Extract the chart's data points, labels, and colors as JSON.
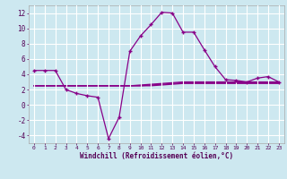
{
  "xlabel": "Windchill (Refroidissement éolien,°C)",
  "bg_color": "#cde8f0",
  "grid_color": "#ffffff",
  "line_color": "#880088",
  "x_hours": [
    0,
    1,
    2,
    3,
    4,
    5,
    6,
    7,
    8,
    9,
    10,
    11,
    12,
    13,
    14,
    15,
    16,
    17,
    18,
    19,
    20,
    21,
    22,
    23
  ],
  "y_main": [
    4.5,
    4.5,
    4.5,
    2.0,
    1.5,
    1.2,
    1.0,
    -4.4,
    -1.6,
    7.0,
    9.0,
    10.5,
    12.1,
    12.0,
    9.5,
    9.5,
    7.2,
    5.0,
    3.3,
    3.2,
    3.0,
    3.5,
    3.7,
    3.0
  ],
  "y_flat1": [
    2.5,
    2.5,
    2.5,
    2.5,
    2.5,
    2.5,
    2.5,
    2.5,
    2.5,
    2.5,
    2.6,
    2.7,
    2.8,
    2.9,
    3.0,
    3.0,
    3.0,
    3.0,
    3.0,
    3.0,
    3.0,
    3.0,
    3.0,
    3.0
  ],
  "y_flat2": [
    2.5,
    2.5,
    2.5,
    2.5,
    2.5,
    2.5,
    2.5,
    2.5,
    2.5,
    2.5,
    2.5,
    2.6,
    2.7,
    2.8,
    2.9,
    2.9,
    2.9,
    2.9,
    2.9,
    2.9,
    2.9,
    2.9,
    2.9,
    2.9
  ],
  "y_flat3": [
    2.5,
    2.5,
    2.5,
    2.5,
    2.5,
    2.5,
    2.5,
    2.5,
    2.5,
    2.5,
    2.5,
    2.5,
    2.6,
    2.7,
    2.8,
    2.8,
    2.8,
    2.8,
    2.8,
    2.8,
    2.8,
    2.8,
    2.8,
    2.8
  ],
  "ylim": [
    -5,
    13
  ],
  "yticks": [
    -4,
    -2,
    0,
    2,
    4,
    6,
    8,
    10,
    12
  ],
  "xtick_labels": [
    "0",
    "1",
    "2",
    "3",
    "4",
    "5",
    "6",
    "7",
    "8",
    "9",
    "10",
    "11",
    "12",
    "13",
    "14",
    "15",
    "16",
    "17",
    "18",
    "19",
    "20",
    "21",
    "22",
    "23"
  ],
  "fig_width": 3.2,
  "fig_height": 2.0,
  "dpi": 100
}
